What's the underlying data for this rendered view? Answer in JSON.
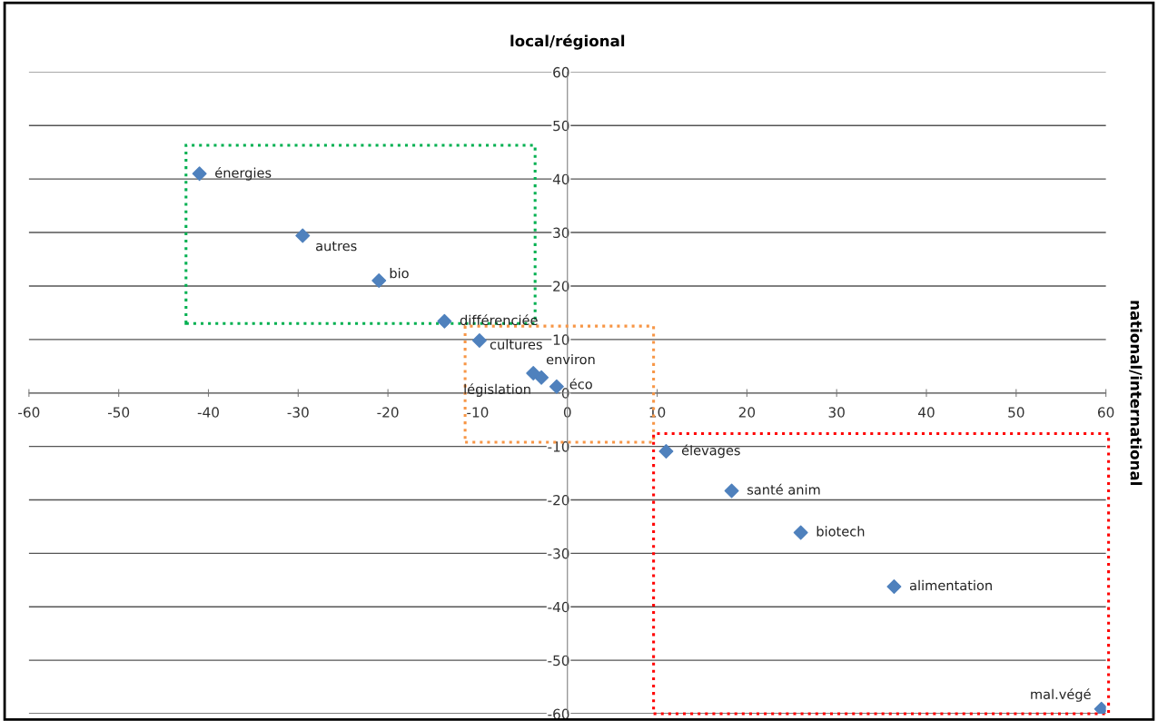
{
  "chart_data": {
    "type": "scatter",
    "ylabel": "local/régional",
    "xlim": [
      -60,
      60
    ],
    "ylim": [
      -60,
      60
    ],
    "xticks": [
      -60,
      -50,
      -40,
      -30,
      -20,
      -10,
      0,
      10,
      20,
      30,
      40,
      50,
      60
    ],
    "yticks": [
      -60,
      -50,
      -40,
      -30,
      -20,
      -10,
      0,
      10,
      20,
      30,
      40,
      50,
      60
    ],
    "grid": "y",
    "marker": "diamond",
    "legend": false,
    "series": [
      {
        "color": "#4f81bd",
        "x": [
          -41,
          -29.5,
          -21,
          -13.7,
          -9.8,
          -3.8,
          -2.9,
          -1.2,
          11,
          18.3,
          26,
          36.4,
          59.5
        ],
        "values": [
          41,
          29.4,
          21,
          13.4,
          9.8,
          3.7,
          2.9,
          1.2,
          -10.9,
          -18.3,
          -26.1,
          -36.2,
          -59.1
        ]
      }
    ],
    "annotations": [
      {
        "text": "énergies",
        "x": -41,
        "y": 41
      },
      {
        "text": "autres",
        "x": -29.5,
        "y": 29.4
      },
      {
        "text": "bio",
        "x": -21,
        "y": 21
      },
      {
        "text": "différenciée",
        "x": -13.7,
        "y": 13.4
      },
      {
        "text": "cultures",
        "x": -9.8,
        "y": 9.8
      },
      {
        "text": "environ",
        "x": -3.8,
        "y": 3.7
      },
      {
        "text": "législation",
        "x": -2.9,
        "y": 2.9
      },
      {
        "text": "éco",
        "x": -1.2,
        "y": 1.2
      },
      {
        "text": "élevages",
        "x": 11,
        "y": -10.9
      },
      {
        "text": "santé anim",
        "x": 18.3,
        "y": -18.3
      },
      {
        "text": "biotech",
        "x": 26,
        "y": -26.1
      },
      {
        "text": "alimentation",
        "x": 36.4,
        "y": -36.2
      },
      {
        "text": "mal.végé",
        "x": 59.5,
        "y": -59.1
      },
      "national/international"
    ]
  }
}
